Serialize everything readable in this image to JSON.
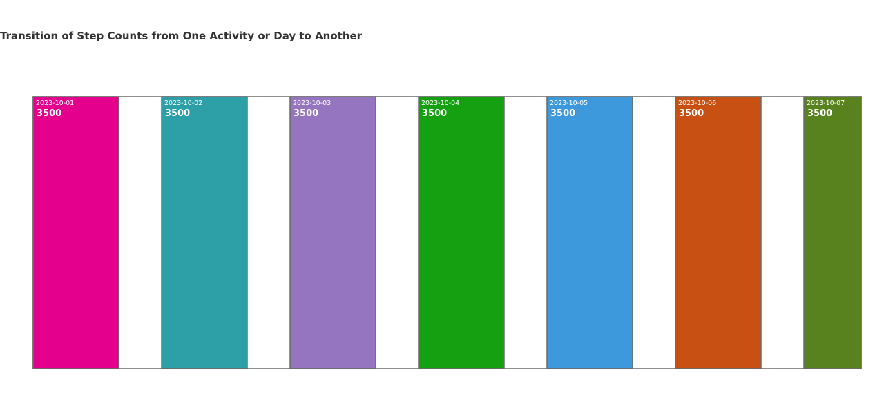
{
  "chart_data": {
    "type": "bar",
    "title": "Transition of Step Counts from One Activity or Day to Another",
    "categories": [
      "2023-10-01",
      "2023-10-02",
      "2023-10-03",
      "2023-10-04",
      "2023-10-05",
      "2023-10-06",
      "2023-10-07"
    ],
    "values": [
      3500,
      3500,
      3500,
      3500,
      3500,
      3500,
      3500
    ],
    "colors": [
      "#e4008d",
      "#2ca0a6",
      "#9575c0",
      "#14a011",
      "#3d98dc",
      "#c85012",
      "#58821e"
    ],
    "ylim": [
      0,
      3500
    ],
    "grid": false,
    "legend": "none"
  }
}
